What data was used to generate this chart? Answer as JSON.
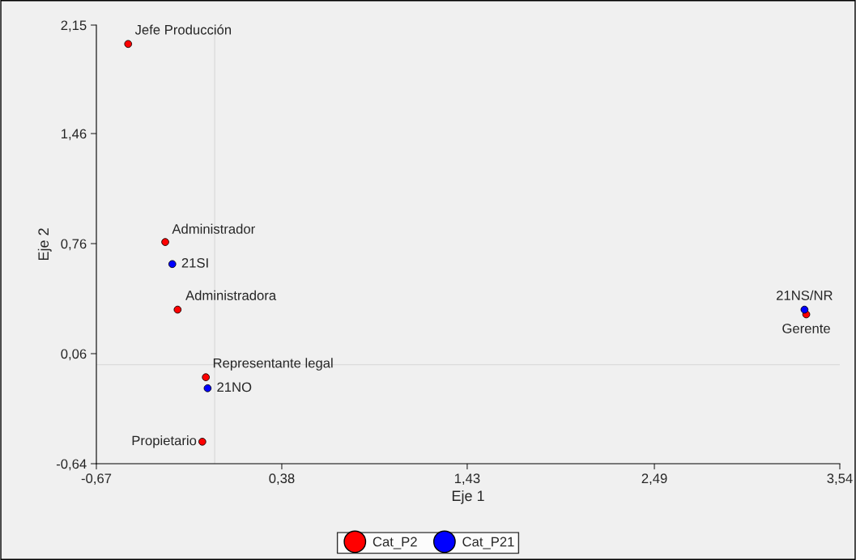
{
  "chart_data": {
    "type": "scatter",
    "xlabel": "Eje 1",
    "ylabel": "Eje 2",
    "xlim": [
      -0.67,
      3.54
    ],
    "ylim": [
      -0.64,
      2.15
    ],
    "xticks": [
      {
        "value": -0.67,
        "label": "-0,67"
      },
      {
        "value": 0.38,
        "label": "0,38"
      },
      {
        "value": 1.43,
        "label": "1,43"
      },
      {
        "value": 2.49,
        "label": "2,49"
      },
      {
        "value": 3.54,
        "label": "3,54"
      }
    ],
    "yticks": [
      {
        "value": -0.64,
        "label": "-0,64"
      },
      {
        "value": 0.06,
        "label": "0,06"
      },
      {
        "value": 0.76,
        "label": "0,76"
      },
      {
        "value": 1.46,
        "label": "1,46"
      },
      {
        "value": 2.15,
        "label": "2,15"
      }
    ],
    "series": [
      {
        "name": "Cat_P2",
        "color": "#ff0000",
        "x": [
          -0.49,
          -0.28,
          -0.21,
          -0.05,
          -0.07,
          3.35
        ],
        "values": [
          2.03,
          0.77,
          0.34,
          -0.09,
          -0.5,
          0.31
        ]
      },
      {
        "name": "Cat_P21",
        "color": "#0000ff",
        "x": [
          -0.24,
          -0.04,
          3.34
        ],
        "values": [
          0.63,
          -0.16,
          0.34
        ]
      }
    ],
    "annotations": [
      {
        "text": "Jefe Producción",
        "x": -0.49,
        "y": 2.03
      },
      {
        "text": "Administrador",
        "x": -0.28,
        "y": 0.77
      },
      {
        "text": "Administradora",
        "x": -0.21,
        "y": 0.34
      },
      {
        "text": "Representante legal",
        "x": -0.05,
        "y": -0.09
      },
      {
        "text": "Propietario",
        "x": -0.07,
        "y": -0.5
      },
      {
        "text": "Gerente",
        "x": 3.35,
        "y": 0.31
      },
      {
        "text": "21SI",
        "x": -0.24,
        "y": 0.63
      },
      {
        "text": "21NO",
        "x": -0.04,
        "y": -0.16
      },
      {
        "text": "21NS/NR",
        "x": 3.34,
        "y": 0.34
      }
    ],
    "ref_lines": [
      {
        "axis": "x",
        "value": 0,
        "color": "#dcdcdc"
      },
      {
        "axis": "y",
        "value": -0.01,
        "color": "#dcdcdc"
      }
    ],
    "marker": "circle",
    "legend": "bottom",
    "grid": false
  }
}
